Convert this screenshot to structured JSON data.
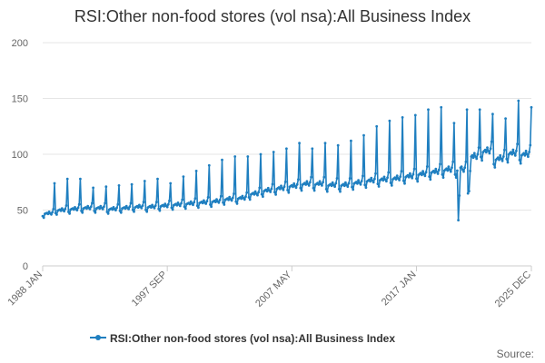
{
  "chart_data": {
    "type": "line",
    "title": "RSI:Other non-food stores (vol nsa):All Business Index",
    "xlabel": "",
    "ylabel": "",
    "ylim": [
      0,
      200
    ],
    "y_ticks": [
      0,
      50,
      100,
      150,
      200
    ],
    "x_range": [
      "1988 JAN",
      "2025 DEC"
    ],
    "x_ticks": [
      {
        "label": "1988 JAN",
        "year": 1988.0
      },
      {
        "label": "1997 SEP",
        "year": 1997.667
      },
      {
        "label": "2007 MAY",
        "year": 2007.333
      },
      {
        "label": "2017 JAN",
        "year": 2017.0
      },
      {
        "label": "2025 DEC",
        "year": 2025.917
      }
    ],
    "series": [
      {
        "name": "RSI:Other non-food stores (vol nsa):All Business Index",
        "color": "#1f7fc0",
        "frequency": "monthly",
        "start": "1988 JAN",
        "end": "2025 DEC",
        "yearly_base": [
          48,
          51,
          52,
          53,
          53,
          52,
          53,
          54,
          54,
          55,
          56,
          57,
          58,
          59,
          61,
          62,
          66,
          69,
          71,
          73,
          75,
          75,
          74,
          74,
          76,
          78,
          79,
          80,
          82,
          84,
          86,
          88,
          88,
          100,
          105,
          98,
          103,
          102
        ],
        "yearly_dec_peak": [
          74,
          78,
          78,
          70,
          71,
          72,
          73,
          76,
          78,
          74,
          80,
          85,
          90,
          95,
          98,
          98,
          100,
          102,
          105,
          110,
          105,
          110,
          108,
          112,
          117,
          125,
          130,
          133,
          135,
          140,
          142,
          128,
          140,
          140,
          136,
          132,
          148,
          142
        ],
        "events": [
          {
            "period": "2020 APR",
            "value": 41
          },
          {
            "period": "2020 MAY",
            "value": 63
          },
          {
            "period": "2020 JUN",
            "value": 88
          },
          {
            "period": "2021 JAN",
            "value": 65
          },
          {
            "period": "2021 FEB",
            "value": 67
          },
          {
            "period": "2021 MAR",
            "value": 85
          }
        ]
      }
    ]
  },
  "legend": {
    "label": "RSI:Other non-food stores (vol nsa):All Business Index"
  },
  "source": {
    "label": "Source:"
  }
}
